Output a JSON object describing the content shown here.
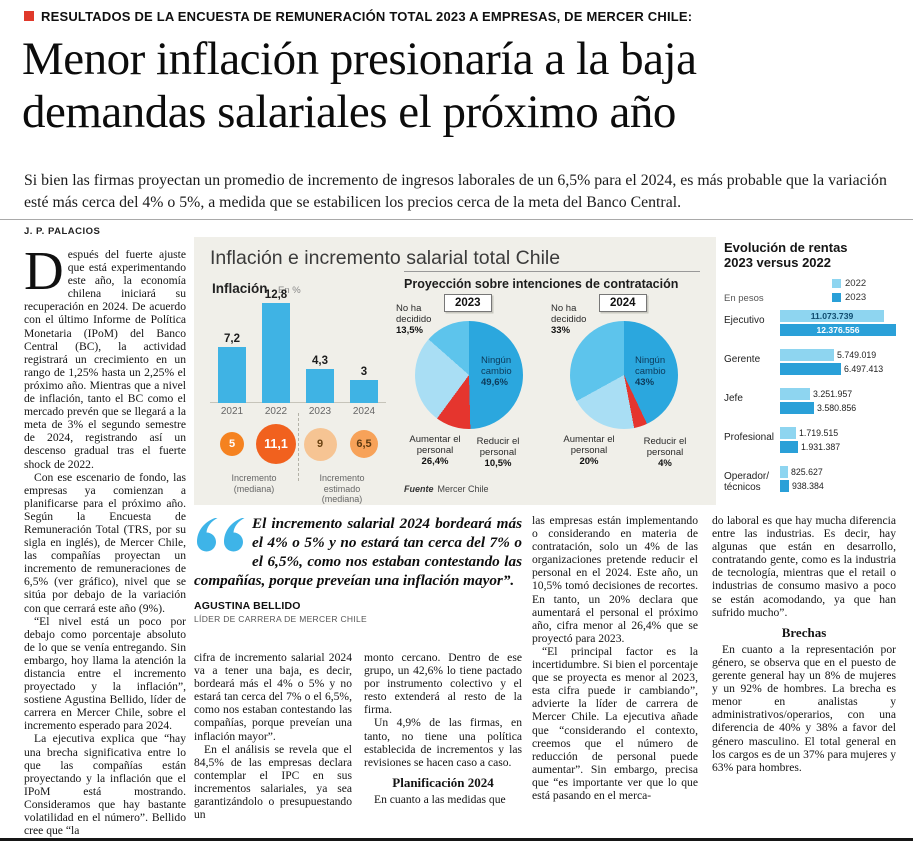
{
  "page": {
    "kicker": "RESULTADOS DE LA ENCUESTA DE REMUNERACIÓN TOTAL 2023 A EMPRESAS, DE MERCER CHILE:",
    "headline_line1": "Menor inflación presionaría a la baja",
    "headline_line2": "demandas salariales el próximo año",
    "lead": "Si bien las firmas proyectan un promedio de incremento de ingresos laborales de un 6,5% para el 2024, es más probable que la variación esté más cerca del 4% o 5%, a medida que se estabilicen los precios cerca de la meta del Banco Central.",
    "byline": "J. P. PALACIOS"
  },
  "article": {
    "dropcap": "D",
    "col1_p1": "espués del fuerte ajuste que está experimentando este año, la economía chilena iniciará su recuperación en 2024. De acuerdo con el último Informe de Política Monetaria (IPoM) del Banco Central (BC), la actividad registrará un crecimiento en un rango de 1,25% hasta un 2,25% el próximo año. Mientras que a nivel de inflación, tanto el BC como el mercado prevén que se llegará a la meta de 3% el segundo semestre de 2024, registrando así un descenso gradual tras el fuerte shock de 2022.",
    "col1_p2": "Con ese escenario de fondo, las empresas ya comienzan a planificarse para el próximo año. Según la Encuesta de Remuneración Total (TRS, por su sigla en inglés), de Mercer Chile, las compañías proyectan un incremento de remuneraciones de 6,5% (ver gráfico), nivel que se sitúa por debajo de la variación con que cerrará este año (9%).",
    "col1_p3": "“El nivel está un poco por debajo como porcentaje absoluto de lo que se venía entregando. Sin embargo, hoy llama la atención la distancia entre el incremento proyectado y la inflación”, sostiene Agustina Bellido, líder de carrera en Mercer Chile, sobre el incremento esperado para 2024.",
    "col1_p4": "La ejecutiva explica que “hay una brecha significativa entre lo que las compañías están proyectando y la inflación que el IPoM está mostrando. Consideramos que hay bastante volatilidad en el número”. Bellido cree que “la",
    "col2_p1": "cifra de incremento salarial 2024 va a tener una baja, es decir, bordeará más el 4% o 5% y no estará tan cerca del 7% o el 6,5%, como nos estaban contestando las compañías, porque preveían una inflación mayor”.",
    "col2_p2": "En el análisis se revela que el 84,5% de las empresas declara contemplar el IPC en sus incrementos salariales, ya sea garantizándolo o presupuestando un",
    "col3_p1": "monto cercano. Dentro de ese grupo, un 42,6% lo tiene pactado por instrumento colectivo y el resto extenderá al resto de la firma.",
    "col3_p2": "Un 4,9% de las firmas, en tanto, no tiene una política establecida de incrementos y las revisiones se hacen caso a caso.",
    "col3_h1": "Planificación 2024",
    "col3_p3": "En cuanto a las medidas que",
    "col4_p1": "las empresas están implementando o considerando en materia de contratación, solo un 4% de las organizaciones pretende reducir el personal en el 2024. Este año, un 10,5% tomó decisiones de recortes. En tanto, un 20% declara que aumentará el personal el próximo año, cifra menor al 26,4% que se proyectó para 2023.",
    "col4_p2": "“El principal factor es la incertidumbre. Si bien el porcentaje que se proyecta es menor al 2023, esta cifra puede ir cambiando”, advierte la líder de carrera de Mercer Chile. La ejecutiva añade que “considerando el contexto, creemos que el número de reducción de personal puede aumentar”. Sin embargo, precisa que “es importante ver que lo que está pasando en el merca-",
    "col5_p1": "do laboral es que hay mucha diferencia entre las industrias. Es decir, hay algunas que están en desarrollo, contratando gente, como es la industria de tecnología, mientras que el retail o industrias de consumo masivo a poco se están acomodando, ya que han sufrido mucho”.",
    "col5_h1": "Brechas",
    "col5_p2": "En cuanto a la representación por género, se observa que en el puesto de gerente general hay un 8% de mujeres y un 92% de hombres. La brecha es menor en analistas y administrativos/operarios, con una diferencia de 40% y 38% a favor del género masculino. El total general en los cargos es de un 37% para mujeres y 63% para hombres."
  },
  "quote": {
    "text": "El incremento salarial 2024 bordeará más el 4% o 5% y no estará tan cerca del 7% o el 6,5%, como nos estaban contestando las compañías, porque preveían una inflación mayor”.",
    "author": "AGUSTINA BELLIDO",
    "role": "LÍDER DE CARRERA DE MERCER CHILE",
    "accent_color": "#3eb4e8"
  },
  "infographic": {
    "title": "Inflación e incremento salarial total Chile",
    "background": "#f0efe9",
    "inflation": {
      "heading": "Inflación",
      "unit": "En %",
      "bar_color": "#3fb3e4",
      "bars": [
        {
          "year": "2021",
          "label": "7,2",
          "value": 7.2
        },
        {
          "year": "2022",
          "label": "12,8",
          "value": 12.8
        },
        {
          "year": "2023",
          "label": "4,3",
          "value": 4.3
        },
        {
          "year": "2024",
          "label": "3",
          "value": 3
        }
      ]
    },
    "increments": {
      "circles": [
        {
          "label": "5",
          "value": 5,
          "color": "#f58220",
          "text": "#ffffff",
          "size": 24
        },
        {
          "label": "11,1",
          "value": 11.1,
          "color": "#f1611e",
          "text": "#ffffff",
          "size": 40
        },
        {
          "label": "9",
          "value": 9,
          "color": "#f6c493",
          "text": "#6b4312",
          "size": 33
        },
        {
          "label": "6,5",
          "value": 6.5,
          "color": "#f7a259",
          "text": "#5d3a10",
          "size": 28
        }
      ],
      "group1_label": "Incremento (mediana)",
      "group2_label": "Incremento estimado (mediana)"
    },
    "pies_heading": "Proyección sobre intenciones de contratación",
    "pie_2023": {
      "tag": "2023",
      "slices": [
        {
          "name": "Ningún cambio",
          "pct_label": "49,6%",
          "value": 49.6,
          "color": "#2ba7de"
        },
        {
          "name": "Reducir el personal",
          "pct_label": "10,5%",
          "value": 10.5,
          "color": "#e5352e"
        },
        {
          "name": "Aumentar el personal",
          "pct_label": "26,4%",
          "value": 26.4,
          "color": "#a9def4"
        },
        {
          "name": "No ha decidido",
          "pct_label": "13,5%",
          "value": 13.5,
          "color": "#5dc4ec"
        }
      ]
    },
    "pie_2024": {
      "tag": "2024",
      "slices": [
        {
          "name": "Ningún cambio",
          "pct_label": "43%",
          "value": 43,
          "color": "#2ba7de"
        },
        {
          "name": "Reducir el personal",
          "pct_label": "4%",
          "value": 4,
          "color": "#e5352e"
        },
        {
          "name": "Aumentar el personal",
          "pct_label": "20%",
          "value": 20,
          "color": "#a9def4"
        },
        {
          "name": "No ha decidido",
          "pct_label": "33%",
          "value": 33,
          "color": "#5dc4ec"
        }
      ]
    },
    "source_label": "Fuente",
    "source": "Mercer Chile"
  },
  "sidebar": {
    "title": "Evolución de rentas 2023 versus 2022",
    "unit": "En pesos",
    "legend": [
      {
        "label": "2022",
        "color": "#8ed5f0"
      },
      {
        "label": "2023",
        "color": "#2aa0d8"
      }
    ],
    "rows": [
      {
        "category": "Ejecutivo",
        "v2022": 11073739,
        "v2023": 12376556,
        "label2022": "11.073.739",
        "label2023": "12.376.556",
        "inside": true
      },
      {
        "category": "Gerente",
        "v2022": 5749019,
        "v2023": 6497413,
        "label2022": "5.749.019",
        "label2023": "6.497.413",
        "inside": false
      },
      {
        "category": "Jefe",
        "v2022": 3251957,
        "v2023": 3580856,
        "label2022": "3.251.957",
        "label2023": "3.580.856",
        "inside": false
      },
      {
        "category": "Profesional",
        "v2022": 1719515,
        "v2023": 1931387,
        "label2022": "1.719.515",
        "label2023": "1.931.387",
        "inside": false
      },
      {
        "category": "Operador/ técnicos",
        "v2022": 825627,
        "v2023": 938384,
        "label2022": "825.627",
        "label2023": "938.384",
        "inside": false
      }
    ]
  },
  "chart_data": [
    {
      "type": "bar",
      "title": "Inflación (En %)",
      "categories": [
        "2021",
        "2022",
        "2023",
        "2024"
      ],
      "values": [
        7.2,
        12.8,
        4.3,
        3
      ],
      "xlabel": "",
      "ylabel": "En %",
      "ylim": [
        0,
        12.8
      ],
      "grid": false
    },
    {
      "type": "bar",
      "title": "Incremento salarial total Chile (mediana, %)",
      "categories": [
        "Incremento (mediana) 2021",
        "Incremento (mediana) 2022",
        "Incremento estimado (mediana) 2023",
        "Incremento estimado (mediana) 2024"
      ],
      "values": [
        5,
        11.1,
        9,
        6.5
      ]
    },
    {
      "type": "pie",
      "title": "Proyección sobre intenciones de contratación — 2023",
      "categories": [
        "Ningún cambio",
        "Aumentar el personal",
        "No ha decidido",
        "Reducir el personal"
      ],
      "values": [
        49.6,
        26.4,
        13.5,
        10.5
      ]
    },
    {
      "type": "pie",
      "title": "Proyección sobre intenciones de contratación — 2024",
      "categories": [
        "Ningún cambio",
        "No ha decidido",
        "Aumentar el personal",
        "Reducir el personal"
      ],
      "values": [
        43,
        33,
        20,
        4
      ]
    },
    {
      "type": "bar",
      "title": "Evolución de rentas 2023 versus 2022 (en pesos)",
      "categories": [
        "Ejecutivo",
        "Gerente",
        "Jefe",
        "Profesional",
        "Operador/técnicos"
      ],
      "series": [
        {
          "name": "2022",
          "values": [
            11073739,
            5749019,
            3251957,
            1719515,
            825627
          ]
        },
        {
          "name": "2023",
          "values": [
            12376556,
            6497413,
            3580856,
            1931387,
            938384
          ]
        }
      ],
      "legend_position": "top-right"
    }
  ]
}
